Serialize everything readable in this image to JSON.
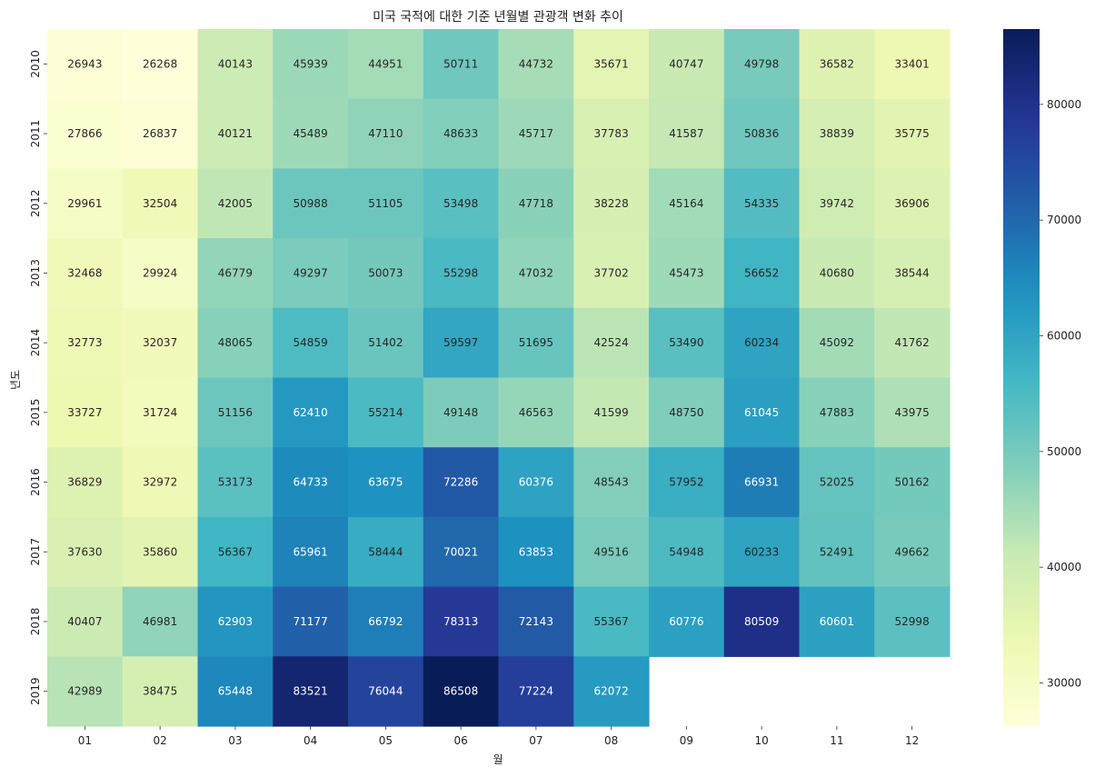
{
  "chart_data": {
    "type": "heatmap",
    "title": "미국 국적에 대한 기준 년월별 관광객 변화 추이",
    "xlabel": "월",
    "ylabel": "년도",
    "colormap": "YlGnBu",
    "vmin": 26268,
    "vmax": 86508,
    "x_categories": [
      "01",
      "02",
      "03",
      "04",
      "05",
      "06",
      "07",
      "08",
      "09",
      "10",
      "11",
      "12"
    ],
    "y_categories": [
      "2010",
      "2011",
      "2012",
      "2013",
      "2014",
      "2015",
      "2016",
      "2017",
      "2018",
      "2019"
    ],
    "values": [
      [
        26943,
        26268,
        40143,
        45939,
        44951,
        50711,
        44732,
        35671,
        40747,
        49798,
        36582,
        33401
      ],
      [
        27866,
        26837,
        40121,
        45489,
        47110,
        48633,
        45717,
        37783,
        41587,
        50836,
        38839,
        35775
      ],
      [
        29961,
        32504,
        42005,
        50988,
        51105,
        53498,
        47718,
        38228,
        45164,
        54335,
        39742,
        36906
      ],
      [
        32468,
        29924,
        46779,
        49297,
        50073,
        55298,
        47032,
        37702,
        45473,
        56652,
        40680,
        38544
      ],
      [
        32773,
        32037,
        48065,
        54859,
        51402,
        59597,
        51695,
        42524,
        53490,
        60234,
        45092,
        41762
      ],
      [
        33727,
        31724,
        51156,
        62410,
        55214,
        49148,
        46563,
        41599,
        48750,
        61045,
        47883,
        43975
      ],
      [
        36829,
        32972,
        53173,
        64733,
        63675,
        72286,
        60376,
        48543,
        57952,
        66931,
        52025,
        50162
      ],
      [
        37630,
        35860,
        56367,
        65961,
        58444,
        70021,
        63853,
        49516,
        54948,
        60233,
        52491,
        49662
      ],
      [
        40407,
        46981,
        62903,
        71177,
        66792,
        78313,
        72143,
        55367,
        60776,
        80509,
        60601,
        52998
      ],
      [
        42989,
        38475,
        65448,
        83521,
        76044,
        86508,
        77224,
        62072,
        null,
        null,
        null,
        null
      ]
    ],
    "colorbar_ticks": [
      30000,
      40000,
      50000,
      60000,
      70000,
      80000
    ],
    "grid": false
  }
}
